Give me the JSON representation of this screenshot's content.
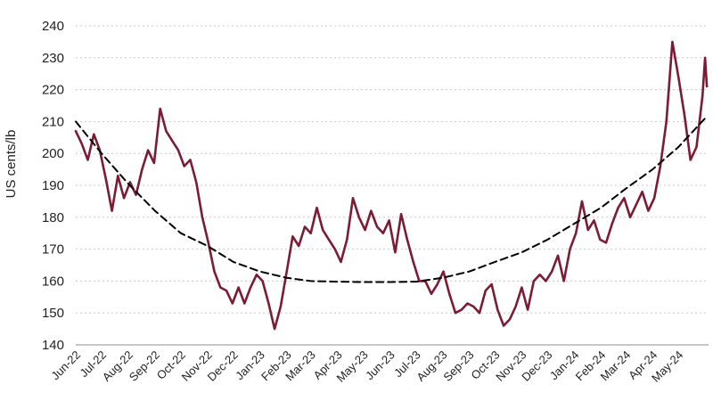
{
  "chart_data": {
    "type": "line",
    "title": "",
    "xlabel": "",
    "ylabel": "US cents/lb",
    "ylim": [
      140,
      240
    ],
    "yticks": [
      140,
      150,
      160,
      170,
      180,
      190,
      200,
      210,
      220,
      230,
      240
    ],
    "xtick_labels": [
      "Jun-22",
      "Jul-22",
      "Aug-22",
      "Sep-22",
      "Oct-22",
      "Nov-22",
      "Dec-22",
      "Jan-23",
      "Feb-23",
      "Mar-23",
      "Apr-23",
      "May-23",
      "Jun-23",
      "Jul-23",
      "Aug-23",
      "Sep-23",
      "Oct-23",
      "Nov-23",
      "Dec-23",
      "Jan-24",
      "Feb-24",
      "Mar-24",
      "Apr-24",
      "May-24"
    ],
    "grid": "horizontal dashed",
    "legend": "none",
    "series": [
      {
        "color": "#7b1c34",
        "style": "solid",
        "points": [
          [
            "2022-06-01",
            207
          ],
          [
            "2022-06-08",
            203
          ],
          [
            "2022-06-15",
            198
          ],
          [
            "2022-06-22",
            206
          ],
          [
            "2022-06-29",
            201
          ],
          [
            "2022-07-06",
            192
          ],
          [
            "2022-07-13",
            182
          ],
          [
            "2022-07-20",
            193
          ],
          [
            "2022-07-27",
            186
          ],
          [
            "2022-08-03",
            191
          ],
          [
            "2022-08-10",
            187
          ],
          [
            "2022-08-17",
            195
          ],
          [
            "2022-08-24",
            201
          ],
          [
            "2022-08-31",
            197
          ],
          [
            "2022-09-07",
            214
          ],
          [
            "2022-09-14",
            207
          ],
          [
            "2022-09-21",
            204
          ],
          [
            "2022-09-28",
            201
          ],
          [
            "2022-10-05",
            196
          ],
          [
            "2022-10-12",
            198
          ],
          [
            "2022-10-19",
            191
          ],
          [
            "2022-10-26",
            180
          ],
          [
            "2022-11-02",
            172
          ],
          [
            "2022-11-09",
            163
          ],
          [
            "2022-11-16",
            158
          ],
          [
            "2022-11-23",
            157
          ],
          [
            "2022-11-30",
            153
          ],
          [
            "2022-12-07",
            158
          ],
          [
            "2022-12-14",
            153
          ],
          [
            "2022-12-21",
            158
          ],
          [
            "2022-12-28",
            162
          ],
          [
            "2023-01-04",
            160
          ],
          [
            "2023-01-11",
            153
          ],
          [
            "2023-01-18",
            145
          ],
          [
            "2023-01-25",
            152
          ],
          [
            "2023-02-01",
            163
          ],
          [
            "2023-02-08",
            174
          ],
          [
            "2023-02-15",
            171
          ],
          [
            "2023-02-22",
            177
          ],
          [
            "2023-03-01",
            175
          ],
          [
            "2023-03-08",
            183
          ],
          [
            "2023-03-15",
            176
          ],
          [
            "2023-03-22",
            173
          ],
          [
            "2023-03-29",
            170
          ],
          [
            "2023-04-05",
            166
          ],
          [
            "2023-04-12",
            173
          ],
          [
            "2023-04-19",
            186
          ],
          [
            "2023-04-26",
            180
          ],
          [
            "2023-05-03",
            176
          ],
          [
            "2023-05-10",
            182
          ],
          [
            "2023-05-17",
            177
          ],
          [
            "2023-05-24",
            175
          ],
          [
            "2023-05-31",
            179
          ],
          [
            "2023-06-07",
            169
          ],
          [
            "2023-06-14",
            181
          ],
          [
            "2023-06-21",
            173
          ],
          [
            "2023-06-28",
            166
          ],
          [
            "2023-07-05",
            160
          ],
          [
            "2023-07-12",
            160
          ],
          [
            "2023-07-19",
            156
          ],
          [
            "2023-07-26",
            159
          ],
          [
            "2023-08-02",
            163
          ],
          [
            "2023-08-09",
            156
          ],
          [
            "2023-08-16",
            150
          ],
          [
            "2023-08-23",
            151
          ],
          [
            "2023-08-30",
            153
          ],
          [
            "2023-09-06",
            152
          ],
          [
            "2023-09-13",
            150
          ],
          [
            "2023-09-20",
            157
          ],
          [
            "2023-09-27",
            159
          ],
          [
            "2023-10-04",
            151
          ],
          [
            "2023-10-11",
            146
          ],
          [
            "2023-10-18",
            148
          ],
          [
            "2023-10-25",
            152
          ],
          [
            "2023-11-01",
            158
          ],
          [
            "2023-11-08",
            151
          ],
          [
            "2023-11-15",
            160
          ],
          [
            "2023-11-22",
            162
          ],
          [
            "2023-11-29",
            160
          ],
          [
            "2023-12-06",
            163
          ],
          [
            "2023-12-13",
            168
          ],
          [
            "2023-12-20",
            160
          ],
          [
            "2023-12-27",
            170
          ],
          [
            "2024-01-03",
            175
          ],
          [
            "2024-01-10",
            185
          ],
          [
            "2024-01-17",
            176
          ],
          [
            "2024-01-24",
            179
          ],
          [
            "2024-01-31",
            173
          ],
          [
            "2024-02-07",
            172
          ],
          [
            "2024-02-14",
            178
          ],
          [
            "2024-02-21",
            183
          ],
          [
            "2024-02-28",
            186
          ],
          [
            "2024-03-06",
            180
          ],
          [
            "2024-03-13",
            184
          ],
          [
            "2024-03-20",
            188
          ],
          [
            "2024-03-27",
            182
          ],
          [
            "2024-04-03",
            186
          ],
          [
            "2024-04-10",
            196
          ],
          [
            "2024-04-17",
            210
          ],
          [
            "2024-04-24",
            235
          ],
          [
            "2024-05-01",
            224
          ],
          [
            "2024-05-08",
            212
          ],
          [
            "2024-05-15",
            198
          ],
          [
            "2024-05-22",
            202
          ],
          [
            "2024-05-29",
            218
          ],
          [
            "2024-06-01",
            230
          ],
          [
            "2024-06-03",
            221
          ]
        ]
      },
      {
        "color": "#000000",
        "style": "dashed",
        "points": [
          [
            "2022-06-01",
            210
          ],
          [
            "2022-07-01",
            200
          ],
          [
            "2022-08-01",
            190.5
          ],
          [
            "2022-09-01",
            182
          ],
          [
            "2022-10-01",
            175
          ],
          [
            "2022-11-01",
            171
          ],
          [
            "2022-12-01",
            166
          ],
          [
            "2023-01-01",
            163
          ],
          [
            "2023-02-01",
            161
          ],
          [
            "2023-03-01",
            160
          ],
          [
            "2023-04-01",
            159.8
          ],
          [
            "2023-05-01",
            159.7
          ],
          [
            "2023-06-01",
            159.7
          ],
          [
            "2023-07-01",
            159.8
          ],
          [
            "2023-08-01",
            161
          ],
          [
            "2023-09-01",
            163
          ],
          [
            "2023-10-01",
            166
          ],
          [
            "2023-11-01",
            169
          ],
          [
            "2023-12-01",
            173
          ],
          [
            "2024-01-01",
            178
          ],
          [
            "2024-02-01",
            183
          ],
          [
            "2024-03-01",
            189
          ],
          [
            "2024-04-01",
            195
          ],
          [
            "2024-05-01",
            202
          ],
          [
            "2024-06-01",
            211
          ]
        ]
      }
    ]
  }
}
